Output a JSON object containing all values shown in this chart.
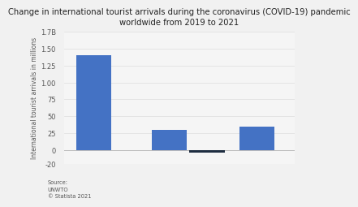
{
  "values": [
    1400,
    300,
    -30,
    350
  ],
  "bar_colors": [
    "#4472C4",
    "#4472C4",
    "#1e2d40",
    "#4472C4"
  ],
  "bar_positions": [
    0.5,
    2.0,
    2.75,
    3.75
  ],
  "bar_width": 0.7,
  "title": "Change in international tourist arrivals during the coronavirus (COVID-19) pandemic\nworldwide from 2019 to 2021",
  "ylabel": "International tourist arrivals in millions",
  "ylim": [
    -200,
    1750
  ],
  "ytick_vals": [
    -200,
    0,
    250,
    500,
    750,
    1000,
    1250,
    1500,
    1750
  ],
  "ytick_labels": [
    "-20",
    "0",
    "25",
    "50",
    "75",
    "1.00",
    "1.25",
    "1.50",
    "1.7B"
  ],
  "source_text": "Source:\nUNWTO\n© Statista 2021",
  "background_color": "#f1f1f1",
  "plot_background": "#f5f5f5",
  "title_fontsize": 7.2,
  "ylabel_fontsize": 5.5,
  "tick_fontsize": 6.0,
  "source_fontsize": 4.8
}
